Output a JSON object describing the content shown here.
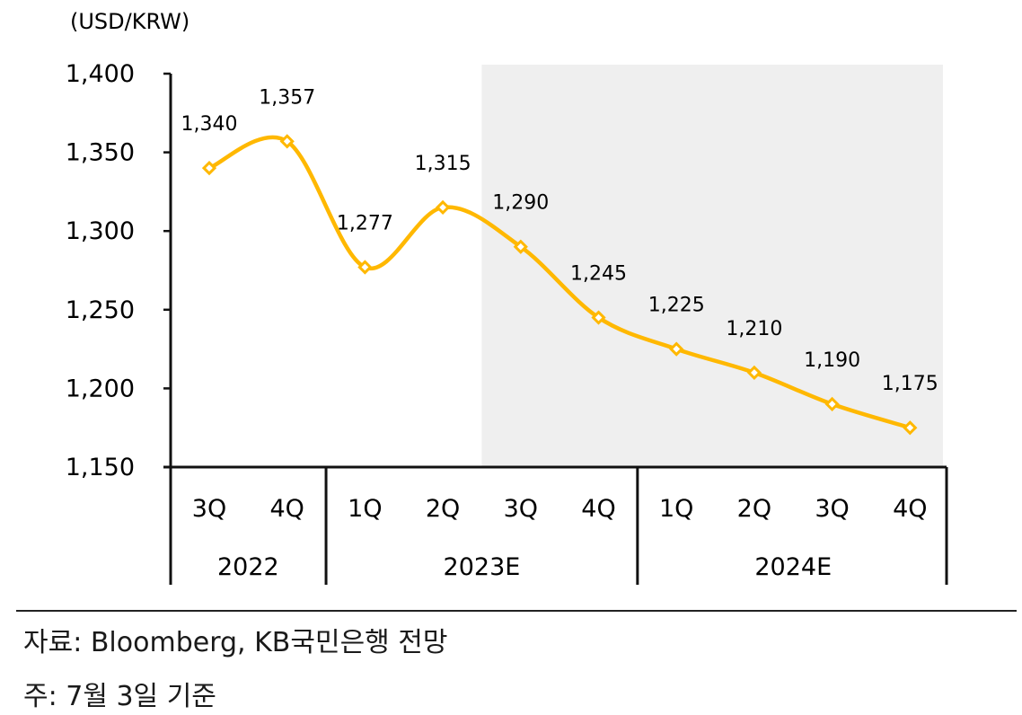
{
  "chart_data": {
    "type": "line",
    "unit_label": "(USD/KRW)",
    "categories": [
      "3Q",
      "4Q",
      "1Q",
      "2Q",
      "3Q",
      "4Q",
      "1Q",
      "2Q",
      "3Q",
      "4Q"
    ],
    "years": [
      {
        "label": "2022",
        "count": 2
      },
      {
        "label": "2023E",
        "count": 4
      },
      {
        "label": "2024E",
        "count": 4
      }
    ],
    "values": [
      1340,
      1357,
      1277,
      1315,
      1290,
      1245,
      1225,
      1210,
      1190,
      1175
    ],
    "value_labels": [
      "1,340",
      "1,357",
      "1,277",
      "1,315",
      "1,290",
      "1,245",
      "1,225",
      "1,210",
      "1,190",
      "1,175"
    ],
    "ylim": [
      1150,
      1400
    ],
    "yticks": [
      1400,
      1350,
      1300,
      1250,
      1200,
      1150
    ],
    "ytick_labels": [
      "1,400",
      "1,350",
      "1,300",
      "1,250",
      "1,200",
      "1,150"
    ],
    "forecast_shading_start_index": 4,
    "line_color": "#FFB800",
    "shade_color": "#EFEFEF",
    "grid": false
  },
  "footer": {
    "source": "자료: Bloomberg, KB국민은행 전망",
    "note": "주: 7월 3일 기준"
  }
}
